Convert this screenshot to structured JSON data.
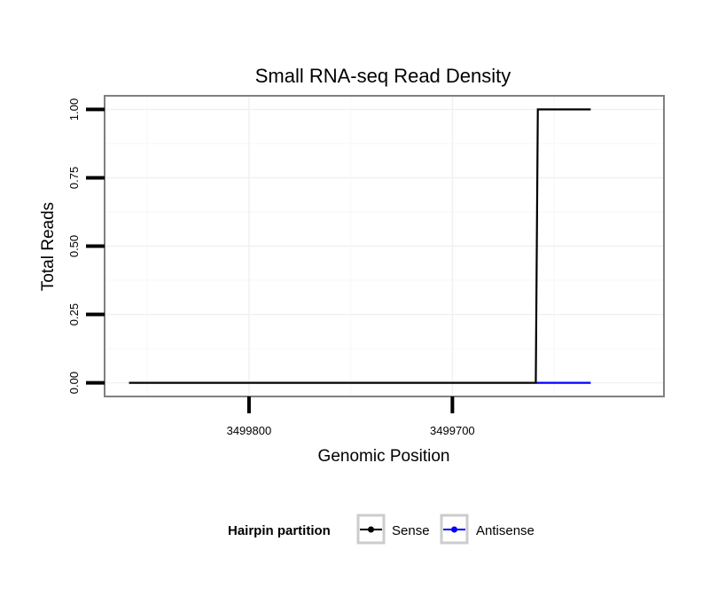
{
  "chart_data": {
    "type": "line",
    "title": "Small RNA-seq Read Density",
    "xlabel": "Genomic Position",
    "ylabel": "Total Reads",
    "x_reversed": true,
    "xlim": [
      3499871,
      3499596
    ],
    "ylim": [
      -0.05,
      1.05
    ],
    "x_ticks": [
      3499800,
      3499700
    ],
    "x_tick_labels": [
      "3499800",
      "3499700"
    ],
    "y_ticks": [
      0,
      0.25,
      0.5,
      0.75,
      1.0
    ],
    "y_tick_labels": [
      "0.00",
      "0.25",
      "0.50",
      "0.75",
      "1.00"
    ],
    "grid": true,
    "legend": {
      "title": "Hairpin partition",
      "position": "bottom"
    },
    "series": [
      {
        "name": "Sense",
        "color": "#000000",
        "points": [
          [
            3499859,
            0
          ],
          [
            3499659,
            0
          ],
          [
            3499658,
            1
          ],
          [
            3499632,
            1
          ]
        ]
      },
      {
        "name": "Antisense",
        "color": "#0000ff",
        "points": [
          [
            3499659,
            0
          ],
          [
            3499632,
            0
          ]
        ]
      }
    ]
  }
}
